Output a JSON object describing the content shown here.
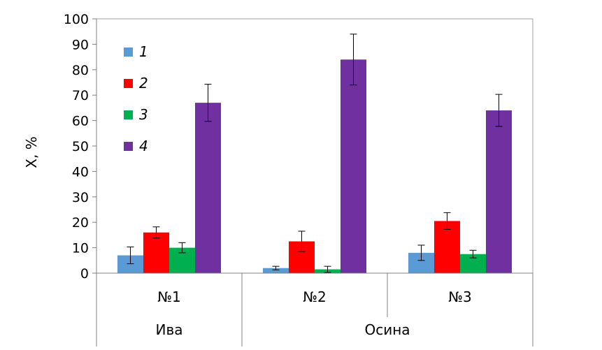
{
  "chart_data": {
    "type": "bar",
    "title": "",
    "xlabel": "",
    "ylabel": "X, %",
    "ylim": [
      0,
      100
    ],
    "yticks": [
      0,
      10,
      20,
      30,
      40,
      50,
      60,
      70,
      80,
      90,
      100
    ],
    "categories": [
      "№1",
      "№2",
      "№3"
    ],
    "groups": [
      {
        "label": "Ива",
        "categories": [
          "№1"
        ]
      },
      {
        "label": "Осина",
        "categories": [
          "№2",
          "№3"
        ]
      }
    ],
    "legend_position": "top-left",
    "series": [
      {
        "name": "1",
        "color": "#5b9bd5",
        "values": [
          7,
          2,
          8
        ],
        "errors": [
          3.3,
          0.7,
          3.0
        ]
      },
      {
        "name": "2",
        "color": "#ff0000",
        "values": [
          16,
          12.5,
          20.5
        ],
        "errors": [
          2.2,
          4.0,
          3.3
        ]
      },
      {
        "name": "3",
        "color": "#00b050",
        "values": [
          10,
          1.5,
          7.5
        ],
        "errors": [
          2.0,
          1.2,
          1.5
        ]
      },
      {
        "name": "4",
        "color": "#7030a0",
        "values": [
          67,
          84,
          64
        ],
        "errors": [
          7.3,
          10.0,
          6.3
        ]
      }
    ]
  }
}
